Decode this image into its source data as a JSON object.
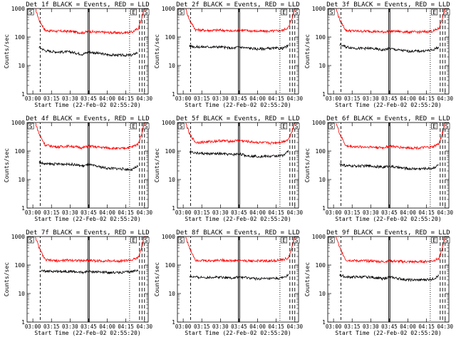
{
  "figure": {
    "x_axis_label": "Start Time (22-Feb-02 02:55:20)",
    "y_axis_label": "Counts/sec",
    "colors": {
      "events": "#000000",
      "lld": "#ff0000",
      "axes": "#000000"
    }
  },
  "chart_data": [
    {
      "type": "line",
      "title": "Det 1f BLACK = Events, RED = LLD",
      "xlabel": "Start Time (22-Feb-02 02:55:20)",
      "ylabel": "Counts/sec",
      "x_ticks": [
        "03:00",
        "03:15",
        "03:30",
        "03:45",
        "04:00",
        "04:15",
        "04:30"
      ],
      "y_ticks": [
        "1",
        "10",
        "100",
        "1000"
      ],
      "xlim": [
        "02:55:20",
        "04:33:00"
      ],
      "ylim": [
        1,
        1000
      ],
      "y_scale": "log",
      "markers": [
        "S",
        "E",
        "S"
      ],
      "series": [
        {
          "color": "red",
          "x": [
            "03:02",
            "03:05",
            "03:10",
            "03:20",
            "03:30",
            "03:40",
            "03:45",
            "03:50",
            "04:00",
            "04:10",
            "04:20",
            "04:25",
            "04:28",
            "04:30"
          ],
          "values": [
            1000,
            400,
            170,
            160,
            160,
            140,
            160,
            150,
            145,
            140,
            150,
            200,
            500,
            1000
          ]
        },
        {
          "color": "black",
          "x": [
            "03:05",
            "03:10",
            "03:20",
            "03:30",
            "03:40",
            "03:45",
            "03:50",
            "04:00",
            "04:10",
            "04:20",
            "04:25"
          ],
          "values": [
            45,
            33,
            30,
            30,
            25,
            30,
            28,
            24,
            23,
            23,
            30
          ]
        }
      ]
    },
    {
      "type": "line",
      "title": "Det 2f BLACK = Events, RED = LLD",
      "xlabel": "Start Time (22-Feb-02 02:55:20)",
      "ylabel": "Counts/sec",
      "x_ticks": [
        "03:00",
        "03:15",
        "03:30",
        "03:45",
        "04:00",
        "04:15",
        "04:30"
      ],
      "y_ticks": [
        "1",
        "10",
        "100",
        "1000"
      ],
      "xlim": [
        "02:55:20",
        "04:33:00"
      ],
      "ylim": [
        1,
        1000
      ],
      "y_scale": "log",
      "markers": [
        "S",
        "E",
        "S"
      ],
      "series": [
        {
          "color": "red",
          "x": [
            "03:02",
            "03:05",
            "03:10",
            "03:20",
            "03:30",
            "03:40",
            "03:45",
            "03:50",
            "04:00",
            "04:10",
            "04:20",
            "04:25",
            "04:28",
            "04:30"
          ],
          "values": [
            1000,
            400,
            180,
            170,
            175,
            160,
            180,
            170,
            160,
            160,
            170,
            220,
            500,
            1000
          ]
        },
        {
          "color": "black",
          "x": [
            "03:05",
            "03:10",
            "03:20",
            "03:30",
            "03:40",
            "03:45",
            "03:50",
            "04:00",
            "04:10",
            "04:20",
            "04:25"
          ],
          "values": [
            50,
            45,
            45,
            45,
            40,
            45,
            42,
            38,
            40,
            40,
            50
          ]
        }
      ]
    },
    {
      "type": "line",
      "title": "Det 3f BLACK = Events, RED = LLD",
      "xlabel": "Start Time (22-Feb-02 02:55:20)",
      "ylabel": "Counts/sec",
      "x_ticks": [
        "03:00",
        "03:15",
        "03:30",
        "03:45",
        "04:00",
        "04:15",
        "04:30"
      ],
      "y_ticks": [
        "1",
        "10",
        "100",
        "1000"
      ],
      "xlim": [
        "02:55:20",
        "04:33:00"
      ],
      "ylim": [
        1,
        1000
      ],
      "y_scale": "log",
      "markers": [
        "S",
        "E",
        "S"
      ],
      "series": [
        {
          "color": "red",
          "x": [
            "03:02",
            "03:05",
            "03:10",
            "03:20",
            "03:30",
            "03:40",
            "03:45",
            "03:50",
            "04:00",
            "04:10",
            "04:20",
            "04:25",
            "04:28",
            "04:30"
          ],
          "values": [
            1000,
            400,
            170,
            160,
            160,
            150,
            160,
            160,
            150,
            150,
            160,
            200,
            500,
            1000
          ]
        },
        {
          "color": "black",
          "x": [
            "03:05",
            "03:10",
            "03:20",
            "03:30",
            "03:40",
            "03:45",
            "03:50",
            "04:00",
            "04:10",
            "04:20",
            "04:25"
          ],
          "values": [
            55,
            45,
            40,
            40,
            35,
            40,
            36,
            32,
            32,
            35,
            45
          ]
        }
      ]
    },
    {
      "type": "line",
      "title": "Det 4f BLACK = Events, RED = LLD",
      "xlabel": "Start Time (22-Feb-02 02:55:20)",
      "ylabel": "Counts/sec",
      "x_ticks": [
        "03:00",
        "03:15",
        "03:30",
        "03:45",
        "04:00",
        "04:15",
        "04:30"
      ],
      "y_ticks": [
        "1",
        "10",
        "100",
        "1000"
      ],
      "xlim": [
        "02:55:20",
        "04:33:00"
      ],
      "ylim": [
        1,
        1000
      ],
      "y_scale": "log",
      "markers": [
        "S",
        "E",
        "S"
      ],
      "series": [
        {
          "color": "red",
          "x": [
            "03:02",
            "03:05",
            "03:10",
            "03:20",
            "03:30",
            "03:40",
            "03:45",
            "03:50",
            "04:00",
            "04:10",
            "04:20",
            "04:25",
            "04:28",
            "04:30"
          ],
          "values": [
            1000,
            400,
            160,
            140,
            150,
            130,
            150,
            140,
            130,
            120,
            140,
            180,
            450,
            1000
          ]
        },
        {
          "color": "black",
          "x": [
            "03:05",
            "03:10",
            "03:20",
            "03:30",
            "03:40",
            "03:45",
            "03:50",
            "04:00",
            "04:10",
            "04:20",
            "04:25"
          ],
          "values": [
            40,
            35,
            35,
            35,
            30,
            33,
            30,
            25,
            24,
            22,
            30
          ]
        }
      ]
    },
    {
      "type": "line",
      "title": "Det 5f BLACK = Events, RED = LLD",
      "xlabel": "Start Time (22-Feb-02 02:55:20)",
      "ylabel": "Counts/sec",
      "x_ticks": [
        "03:00",
        "03:15",
        "03:30",
        "03:45",
        "04:00",
        "04:15",
        "04:30"
      ],
      "y_ticks": [
        "1",
        "10",
        "100",
        "1000"
      ],
      "xlim": [
        "02:55:20",
        "04:33:00"
      ],
      "ylim": [
        1,
        1000
      ],
      "y_scale": "log",
      "markers": [
        "S",
        "E",
        "S"
      ],
      "series": [
        {
          "color": "red",
          "x": [
            "03:02",
            "03:05",
            "03:10",
            "03:20",
            "03:30",
            "03:40",
            "03:45",
            "03:50",
            "04:00",
            "04:10",
            "04:20",
            "04:25",
            "04:28",
            "04:30"
          ],
          "values": [
            1000,
            400,
            200,
            210,
            230,
            220,
            240,
            220,
            200,
            190,
            210,
            260,
            550,
            1000
          ]
        },
        {
          "color": "black",
          "x": [
            "03:05",
            "03:10",
            "03:20",
            "03:30",
            "03:40",
            "03:45",
            "03:50",
            "04:00",
            "04:10",
            "04:20",
            "04:25"
          ],
          "values": [
            100,
            85,
            80,
            80,
            75,
            80,
            70,
            65,
            65,
            70,
            100
          ]
        }
      ]
    },
    {
      "type": "line",
      "title": "Det 6f BLACK = Events, RED = LLD",
      "xlabel": "Start Time (22-Feb-02 02:55:20)",
      "ylabel": "Counts/sec",
      "x_ticks": [
        "03:00",
        "03:15",
        "03:30",
        "03:45",
        "04:00",
        "04:15",
        "04:30"
      ],
      "y_ticks": [
        "1",
        "10",
        "100",
        "1000"
      ],
      "xlim": [
        "02:55:20",
        "04:33:00"
      ],
      "ylim": [
        1,
        1000
      ],
      "y_scale": "log",
      "markers": [
        "S",
        "E",
        "S"
      ],
      "series": [
        {
          "color": "red",
          "x": [
            "03:02",
            "03:05",
            "03:10",
            "03:20",
            "03:30",
            "03:40",
            "03:45",
            "03:50",
            "04:00",
            "04:10",
            "04:20",
            "04:25",
            "04:28",
            "04:30"
          ],
          "values": [
            1000,
            400,
            150,
            140,
            140,
            130,
            150,
            140,
            130,
            130,
            140,
            180,
            450,
            1000
          ]
        },
        {
          "color": "black",
          "x": [
            "03:05",
            "03:10",
            "03:20",
            "03:30",
            "03:40",
            "03:45",
            "03:50",
            "04:00",
            "04:10",
            "04:20",
            "04:25"
          ],
          "values": [
            35,
            30,
            30,
            30,
            27,
            30,
            27,
            24,
            24,
            25,
            33
          ]
        }
      ]
    },
    {
      "type": "line",
      "title": "Det 7f BLACK = Events, RED = LLD",
      "xlabel": "Start Time (22-Feb-02 02:55:20)",
      "ylabel": "Counts/sec",
      "x_ticks": [
        "03:00",
        "03:15",
        "03:30",
        "03:45",
        "04:00",
        "04:15",
        "04:30"
      ],
      "y_ticks": [
        "1",
        "10",
        "100",
        "1000"
      ],
      "xlim": [
        "02:55:20",
        "04:33:00"
      ],
      "ylim": [
        1,
        1000
      ],
      "y_scale": "log",
      "markers": [
        "S",
        "E",
        "S"
      ],
      "series": [
        {
          "color": "red",
          "x": [
            "03:02",
            "03:05",
            "03:10",
            "03:20",
            "03:30",
            "03:40",
            "03:45",
            "03:50",
            "04:00",
            "04:10",
            "04:20",
            "04:25",
            "04:28",
            "04:30"
          ],
          "values": [
            1000,
            400,
            150,
            140,
            150,
            140,
            150,
            140,
            140,
            140,
            150,
            180,
            450,
            1000
          ]
        },
        {
          "color": "black",
          "x": [
            "03:05",
            "03:10",
            "03:20",
            "03:30",
            "03:40",
            "03:45",
            "03:50",
            "04:00",
            "04:10",
            "04:20",
            "04:25"
          ],
          "values": [
            65,
            60,
            60,
            60,
            55,
            60,
            58,
            55,
            55,
            58,
            70
          ]
        }
      ]
    },
    {
      "type": "line",
      "title": "Det 8f BLACK = Events, RED = LLD",
      "xlabel": "Start Time (22-Feb-02 02:55:20)",
      "ylabel": "Counts/sec",
      "x_ticks": [
        "03:00",
        "03:15",
        "03:30",
        "03:45",
        "04:00",
        "04:15",
        "04:30"
      ],
      "y_ticks": [
        "1",
        "10",
        "100",
        "1000"
      ],
      "xlim": [
        "02:55:20",
        "04:33:00"
      ],
      "ylim": [
        1,
        1000
      ],
      "y_scale": "log",
      "markers": [
        "S",
        "E",
        "S"
      ],
      "series": [
        {
          "color": "red",
          "x": [
            "03:02",
            "03:05",
            "03:10",
            "03:20",
            "03:30",
            "03:40",
            "03:45",
            "03:50",
            "04:00",
            "04:10",
            "04:20",
            "04:25",
            "04:28",
            "04:30"
          ],
          "values": [
            1000,
            400,
            150,
            140,
            150,
            140,
            150,
            140,
            140,
            140,
            150,
            180,
            450,
            1000
          ]
        },
        {
          "color": "black",
          "x": [
            "03:05",
            "03:10",
            "03:20",
            "03:30",
            "03:40",
            "03:45",
            "03:50",
            "04:00",
            "04:10",
            "04:20",
            "04:25"
          ],
          "values": [
            40,
            37,
            37,
            38,
            35,
            38,
            36,
            33,
            33,
            35,
            45
          ]
        }
      ]
    },
    {
      "type": "line",
      "title": "Det 9f BLACK = Events, RED = LLD",
      "xlabel": "Start Time (22-Feb-02 02:55:20)",
      "ylabel": "Counts/sec",
      "x_ticks": [
        "03:00",
        "03:15",
        "03:30",
        "03:45",
        "04:00",
        "04:15",
        "04:30"
      ],
      "y_ticks": [
        "1",
        "10",
        "100",
        "1000"
      ],
      "xlim": [
        "02:55:20",
        "04:33:00"
      ],
      "ylim": [
        1,
        1000
      ],
      "y_scale": "log",
      "markers": [
        "S",
        "E",
        "S"
      ],
      "series": [
        {
          "color": "red",
          "x": [
            "03:02",
            "03:05",
            "03:10",
            "03:20",
            "03:30",
            "03:40",
            "03:45",
            "03:50",
            "04:00",
            "04:10",
            "04:20",
            "04:25",
            "04:28",
            "04:30"
          ],
          "values": [
            1000,
            400,
            150,
            140,
            140,
            130,
            140,
            135,
            130,
            130,
            140,
            170,
            420,
            1000
          ]
        },
        {
          "color": "black",
          "x": [
            "03:05",
            "03:10",
            "03:20",
            "03:30",
            "03:40",
            "03:45",
            "03:50",
            "04:00",
            "04:10",
            "04:20",
            "04:25"
          ],
          "values": [
            45,
            38,
            38,
            38,
            33,
            38,
            35,
            30,
            30,
            32,
            42
          ]
        }
      ]
    }
  ]
}
